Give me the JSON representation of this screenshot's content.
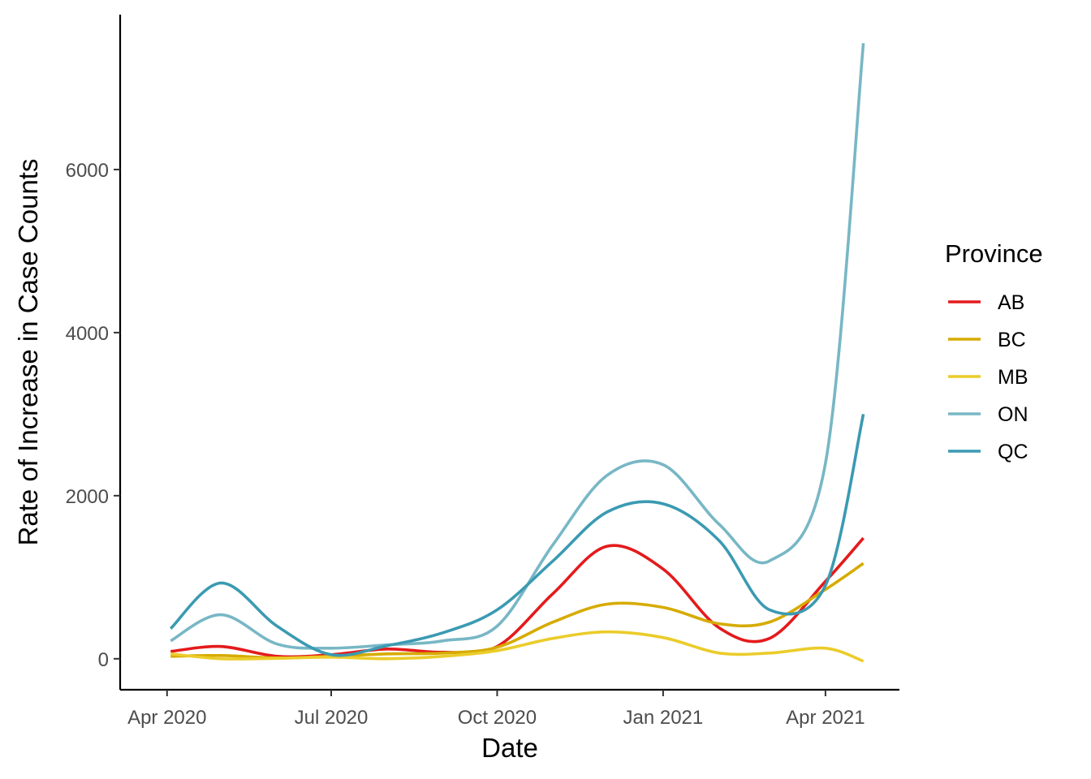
{
  "chart_data": {
    "type": "line",
    "title": "",
    "xlabel": "Date",
    "ylabel": "Rate of Increase in Case Counts",
    "x_ticks": [
      "Apr 2020",
      "Jul 2020",
      "Oct 2020",
      "Jan 2021",
      "Apr 2021"
    ],
    "y_ticks": [
      "0",
      "2000",
      "4000",
      "6000"
    ],
    "x_range": [
      "2020-03-06",
      "2021-05-12"
    ],
    "ylim": [
      -380,
      7900
    ],
    "grid": false,
    "legend": {
      "title": "Province",
      "placement": "right"
    },
    "x": [
      "2020-04-03",
      "2020-05-01",
      "2020-06-01",
      "2020-07-01",
      "2020-08-01",
      "2020-09-01",
      "2020-10-01",
      "2020-11-01",
      "2020-12-01",
      "2021-01-01",
      "2021-02-01",
      "2021-03-01",
      "2021-04-01",
      "2021-04-22"
    ],
    "series": [
      {
        "name": "AB",
        "color": "#E41A1C",
        "values": [
          90,
          150,
          30,
          50,
          120,
          80,
          150,
          800,
          1380,
          1100,
          380,
          250,
          950,
          1480
        ]
      },
      {
        "name": "BC",
        "color": "#D6AB00",
        "values": [
          30,
          40,
          10,
          30,
          60,
          70,
          140,
          450,
          670,
          630,
          430,
          450,
          850,
          1170
        ]
      },
      {
        "name": "MB",
        "color": "#EBCC2A",
        "values": [
          60,
          0,
          5,
          20,
          0,
          30,
          100,
          250,
          330,
          260,
          70,
          70,
          130,
          -30
        ]
      },
      {
        "name": "ON",
        "color": "#78B7C5",
        "values": [
          220,
          540,
          180,
          130,
          170,
          220,
          400,
          1400,
          2250,
          2380,
          1650,
          1200,
          2400,
          7550
        ]
      },
      {
        "name": "QC",
        "color": "#3B9AB2",
        "values": [
          370,
          930,
          400,
          50,
          160,
          320,
          600,
          1200,
          1800,
          1900,
          1450,
          600,
          900,
          3000
        ]
      }
    ]
  }
}
